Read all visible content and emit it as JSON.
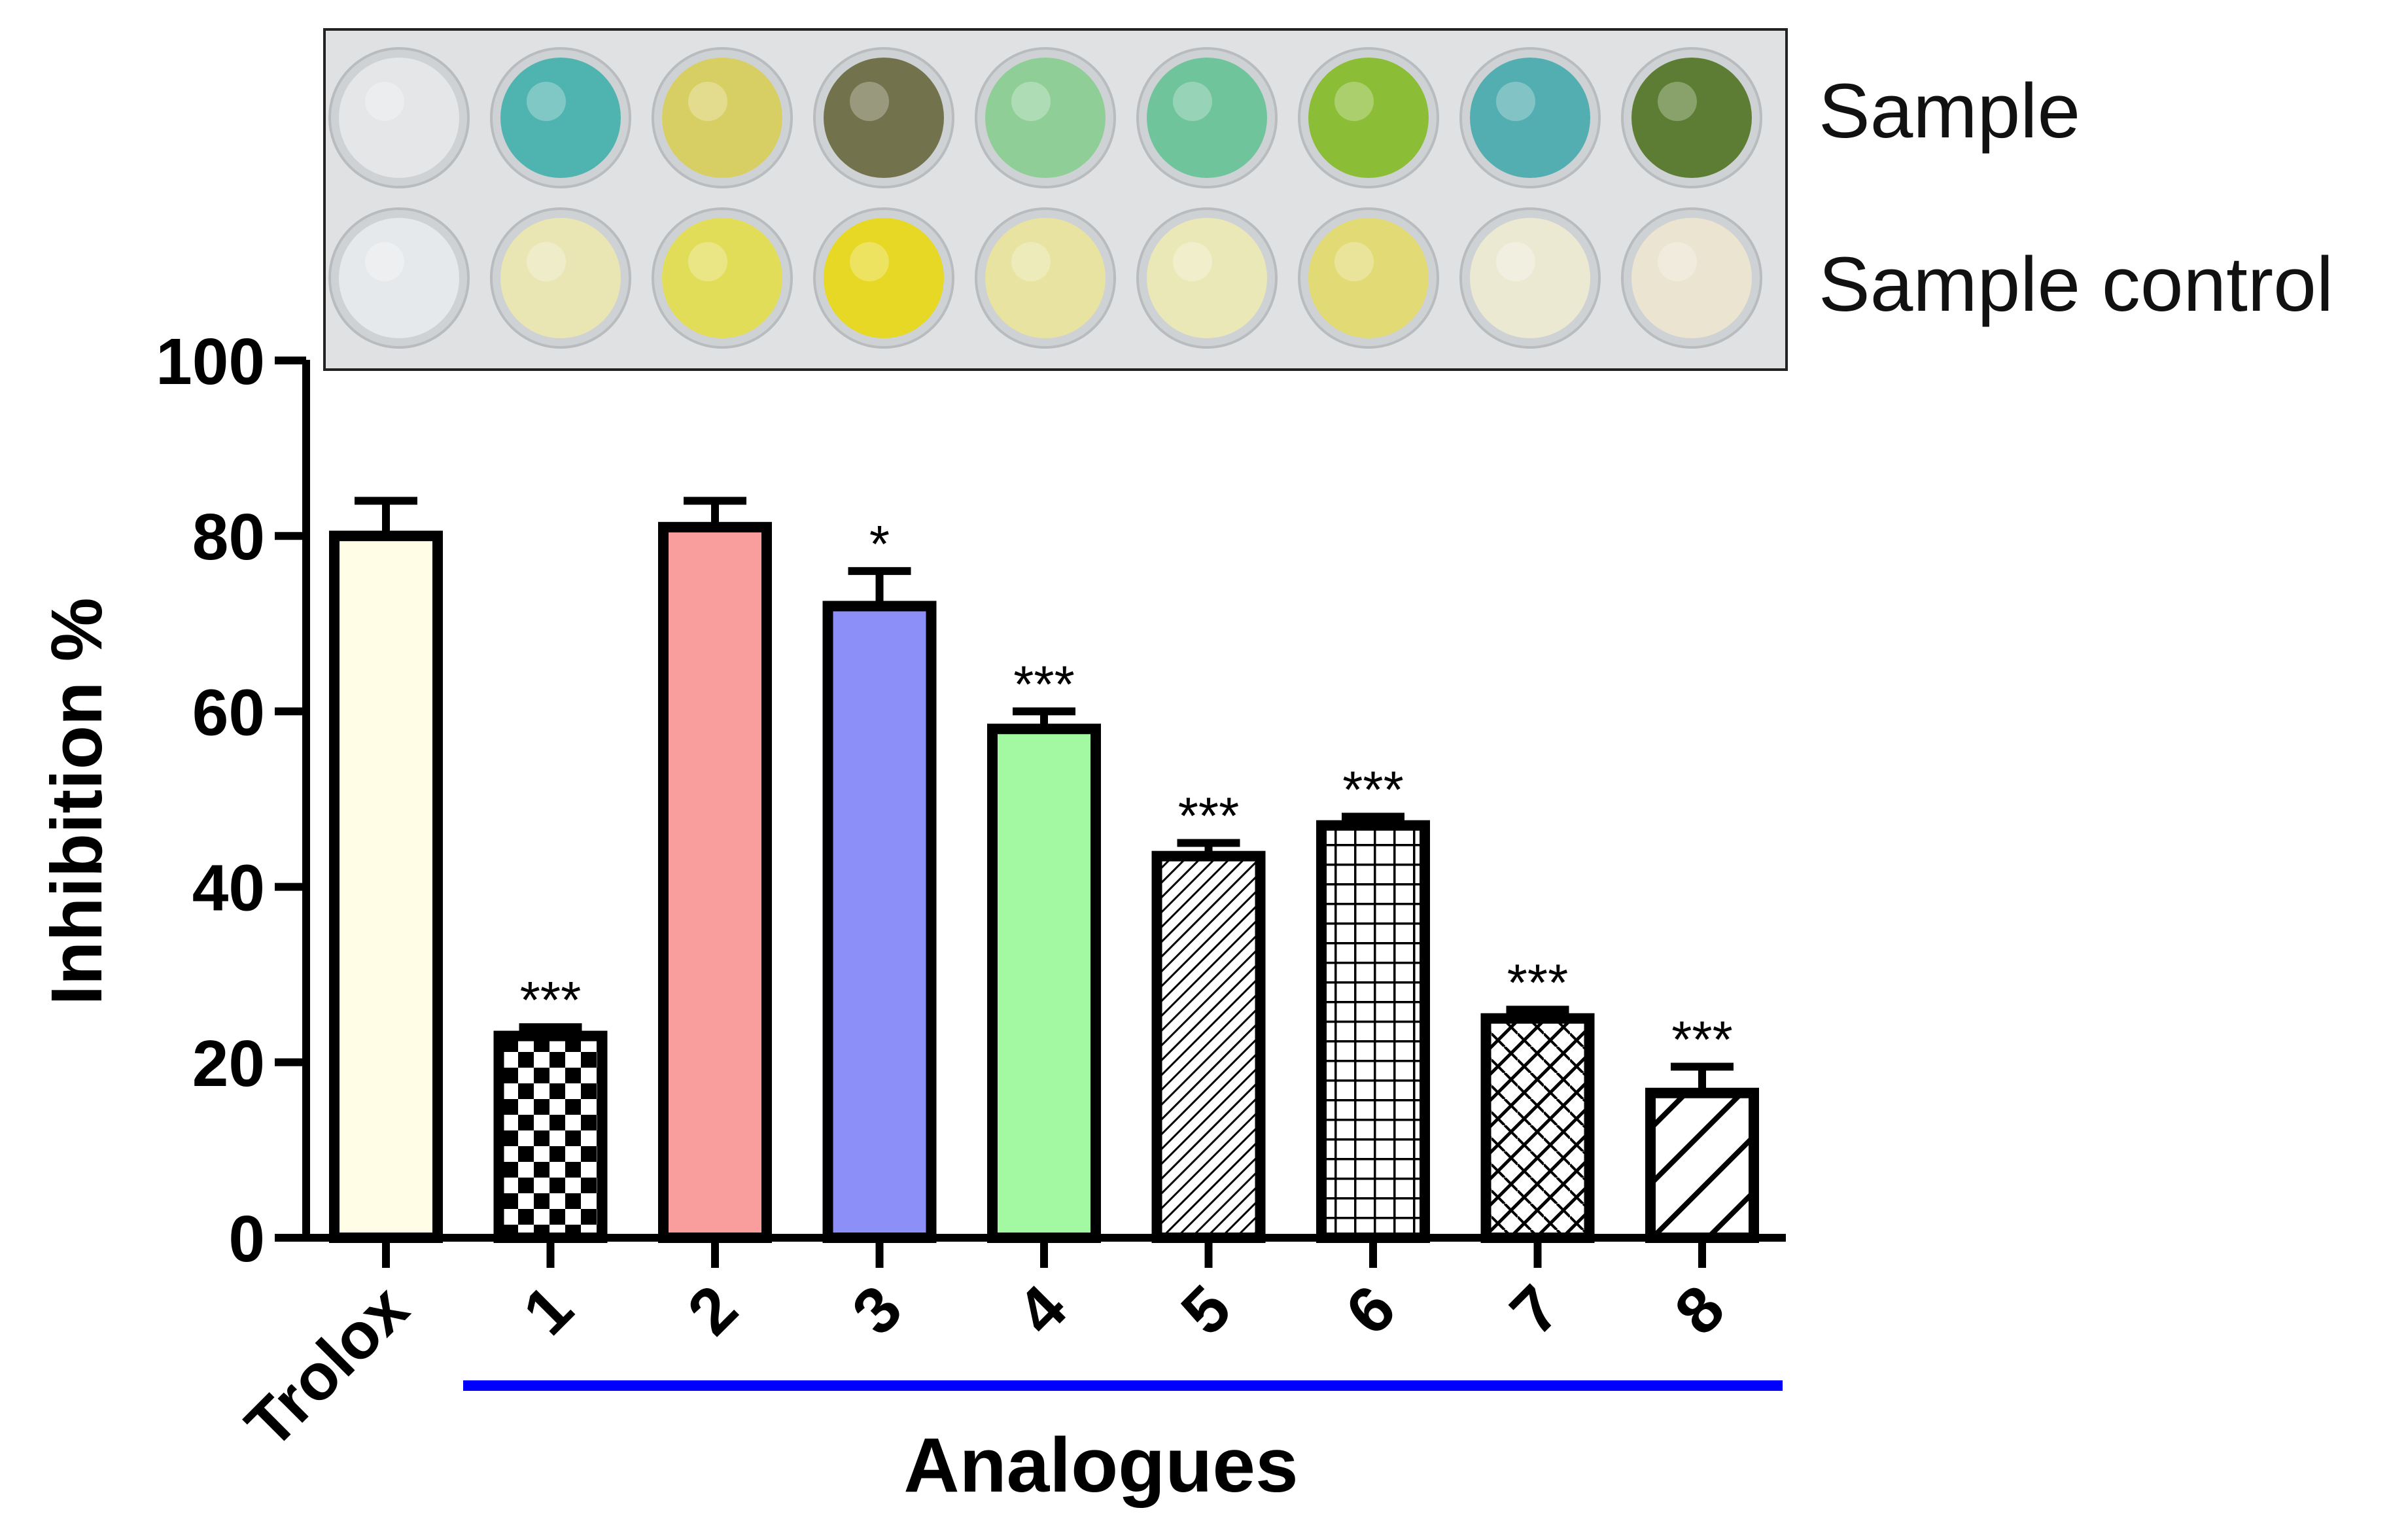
{
  "plate_photo": {
    "row_labels": [
      "Sample",
      "Sample control"
    ],
    "sample_colors": [
      "#e4e6e8",
      "#4fb3b0",
      "#d8cf64",
      "#72734c",
      "#8fcf97",
      "#70c49b",
      "#8cbd37",
      "#53aeb1",
      "#5c7d33"
    ],
    "control_colors": [
      "#e6e9ec",
      "#e9e6b4",
      "#e2dd58",
      "#e6d824",
      "#e8e3a0",
      "#ebe8b8",
      "#e2da74",
      "#ece9d3",
      "#ebe4d0"
    ]
  },
  "chart_data": {
    "type": "bar",
    "categories": [
      "Trolox",
      "1",
      "2",
      "3",
      "4",
      "5",
      "6",
      "7",
      "8"
    ],
    "values": [
      80,
      23,
      81,
      72,
      58,
      43.5,
      47,
      25,
      16.5
    ],
    "errors": [
      4,
      1,
      3,
      4,
      2,
      1.5,
      1,
      1,
      3
    ],
    "significance": [
      "",
      "***",
      "",
      "*",
      "***",
      "***",
      "***",
      "***",
      "***"
    ],
    "fills": [
      "#fffde6",
      "checker",
      "#f99d9d",
      "#8c8ff7",
      "#a2f9a2",
      "diagonal-fine",
      "grid",
      "diagonal-zigzag",
      "diagonal-wide"
    ],
    "group_bracket": {
      "label": "Analogues",
      "from": "1",
      "to": "8",
      "color": "#0000ff"
    },
    "ylabel": "Inhibition %",
    "xlabel": "Analogues",
    "ylim": [
      0,
      100
    ],
    "yticks": [
      0,
      20,
      40,
      60,
      80,
      100
    ],
    "grid": false
  }
}
